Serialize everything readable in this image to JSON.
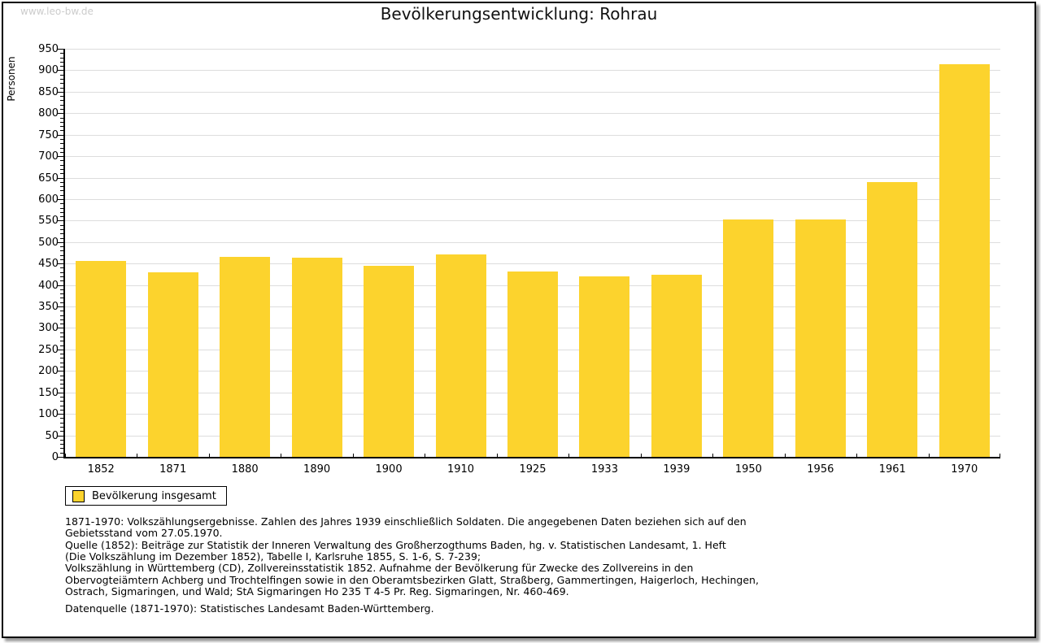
{
  "page": {
    "watermark": "www.leo-bw.de",
    "title": "Bevölkerungsentwicklung: Rohrau"
  },
  "chart_data": {
    "type": "bar",
    "title": "Bevölkerungsentwicklung: Rohrau",
    "xlabel": "",
    "ylabel": "Personen",
    "categories": [
      "1852",
      "1871",
      "1880",
      "1890",
      "1900",
      "1910",
      "1925",
      "1933",
      "1939",
      "1950",
      "1956",
      "1961",
      "1970"
    ],
    "series": [
      {
        "name": "Bevölkerung insgesamt",
        "values": [
          457,
          430,
          465,
          463,
          445,
          472,
          432,
          420,
          424,
          552,
          552,
          639,
          915
        ]
      }
    ],
    "ylim": [
      0,
      950
    ],
    "ytick_major": 50,
    "ytick_minor": 10,
    "grid": true,
    "legend_position": "bottom-left",
    "bar_color": "#FCD32D"
  },
  "legend": {
    "label": "Bevölkerung insgesamt",
    "swatch_color": "#FCD32D"
  },
  "footer": {
    "footnote_lines": [
      "1871-1970: Volkszählungsergebnisse. Zahlen des Jahres 1939 einschließlich Soldaten. Die angegebenen Daten beziehen sich auf den",
      "Gebietsstand vom 27.05.1970.",
      "Quelle (1852): Beiträge zur Statistik der Inneren Verwaltung des Großherzogthums Baden, hg. v. Statistischen Landesamt, 1. Heft",
      "(Die Volkszählung im Dezember 1852), Tabelle I, Karlsruhe 1855, S. 1-6, S. 7-239;",
      "Volkszählung in Württemberg (CD), Zollvereinsstatistik 1852. Aufnahme der Bevölkerung für Zwecke des Zollvereins in den",
      "Obervogteiämtern Achberg und Trochtelfingen sowie in den Oberamtsbezirken Glatt, Straßberg, Gammertingen, Haigerloch, Hechingen,",
      "Ostrach, Sigmaringen, und Wald; StA Sigmaringen Ho 235 T 4-5 Pr. Reg. Sigmaringen, Nr. 460-469."
    ],
    "datasource": "Datenquelle (1871-1970): Statistisches Landesamt Baden-Württemberg."
  },
  "colors": {
    "bar": "#FCD32D",
    "grid": "#dddddd",
    "axis": "#000000",
    "watermark": "#cccccc"
  }
}
